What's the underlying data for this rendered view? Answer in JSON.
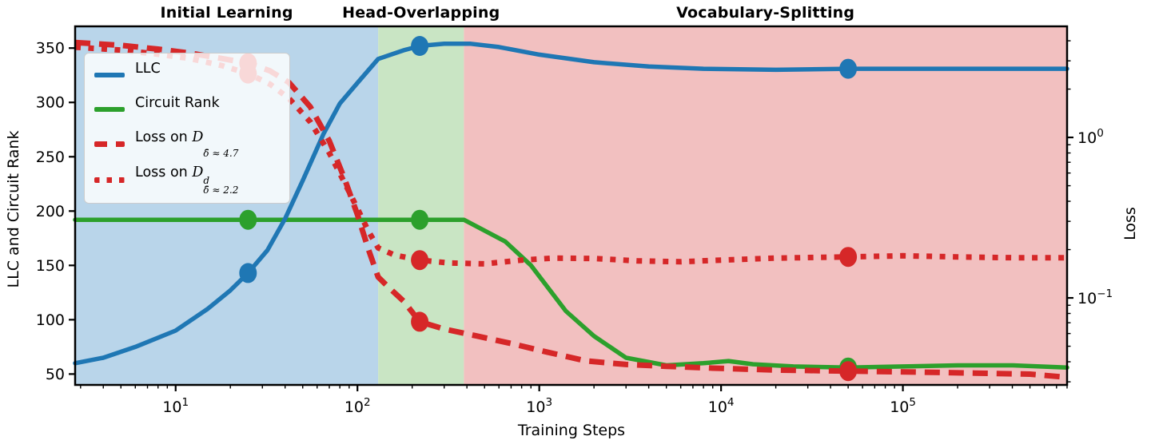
{
  "chart_data": {
    "type": "line",
    "x_axis": {
      "label": "Training Steps",
      "scale": "log",
      "min": 2.8,
      "max": 800000,
      "major_tick_exponents": [
        1,
        2,
        3,
        4,
        5
      ],
      "major_tick_labels": [
        "10¹",
        "10²",
        "10³",
        "10⁴",
        "10⁵"
      ]
    },
    "y_left_axis": {
      "label": "LLC and Circuit Rank",
      "scale": "linear",
      "min": 40,
      "max": 370,
      "ticks": [
        50,
        100,
        150,
        200,
        250,
        300,
        350
      ]
    },
    "y_right_axis": {
      "label": "Loss",
      "scale": "log",
      "min": 0.0287,
      "max": 4.92,
      "major_tick_exponents": [
        0,
        -1
      ],
      "major_tick_labels": [
        "10⁰",
        "10⁻¹"
      ]
    },
    "regions": [
      {
        "label": "Initial Learning",
        "color": "#b9d5ea",
        "from": 2.8,
        "to": 130
      },
      {
        "label": "Head-Overlapping",
        "color": "#c9e5c4",
        "from": 130,
        "to": 385
      },
      {
        "label": "Vocabulary-Splitting",
        "color": "#f2c0c0",
        "from": 385,
        "to": 800000
      }
    ],
    "checkpoint_steps": [
      25,
      220,
      50000
    ],
    "series": [
      {
        "name": "Circuit Rank",
        "color": "#2ca02c",
        "axis": "left",
        "style": "solid",
        "points": [
          [
            2.8,
            192
          ],
          [
            25,
            192
          ],
          [
            130,
            192
          ],
          [
            220,
            192
          ],
          [
            385,
            192
          ],
          [
            650,
            172
          ],
          [
            900,
            150
          ],
          [
            1400,
            108
          ],
          [
            2000,
            85
          ],
          [
            3000,
            65
          ],
          [
            5000,
            58
          ],
          [
            8000,
            60
          ],
          [
            11000,
            62
          ],
          [
            15000,
            59
          ],
          [
            25000,
            57
          ],
          [
            50000,
            56
          ],
          [
            100000,
            57
          ],
          [
            200000,
            58
          ],
          [
            400000,
            58
          ],
          [
            800000,
            56
          ]
        ],
        "markers": [
          [
            25,
            192
          ],
          [
            220,
            192
          ],
          [
            50000,
            56
          ]
        ]
      },
      {
        "name": "LLC",
        "color": "#1f77b4",
        "axis": "left",
        "style": "solid",
        "points": [
          [
            2.8,
            60
          ],
          [
            4,
            65
          ],
          [
            6,
            75
          ],
          [
            10,
            90
          ],
          [
            15,
            110
          ],
          [
            20,
            127
          ],
          [
            25,
            143
          ],
          [
            32,
            164
          ],
          [
            40,
            193
          ],
          [
            50,
            228
          ],
          [
            65,
            271
          ],
          [
            80,
            299
          ],
          [
            100,
            318
          ],
          [
            130,
            340
          ],
          [
            180,
            348
          ],
          [
            220,
            352
          ],
          [
            300,
            354
          ],
          [
            420,
            354
          ],
          [
            600,
            351
          ],
          [
            1000,
            344
          ],
          [
            2000,
            337
          ],
          [
            4000,
            333
          ],
          [
            8000,
            331
          ],
          [
            20000,
            330
          ],
          [
            50000,
            331
          ],
          [
            100000,
            331
          ],
          [
            300000,
            331
          ],
          [
            800000,
            331
          ]
        ],
        "markers": [
          [
            25,
            143
          ],
          [
            220,
            352
          ],
          [
            50000,
            331
          ]
        ]
      },
      {
        "name": "Loss on D (δ̄ ≈ 4.7)",
        "color": "#d62728",
        "axis": "right",
        "style": "dashed",
        "points": [
          [
            2.8,
            3.9
          ],
          [
            5,
            3.75
          ],
          [
            8,
            3.55
          ],
          [
            12,
            3.35
          ],
          [
            18,
            3.1
          ],
          [
            25,
            2.9
          ],
          [
            33,
            2.6
          ],
          [
            42,
            2.2
          ],
          [
            55,
            1.55
          ],
          [
            70,
            0.95
          ],
          [
            85,
            0.55
          ],
          [
            100,
            0.33
          ],
          [
            115,
            0.2
          ],
          [
            130,
            0.135
          ],
          [
            150,
            0.115
          ],
          [
            180,
            0.095
          ],
          [
            220,
            0.071
          ],
          [
            300,
            0.064
          ],
          [
            450,
            0.058
          ],
          [
            700,
            0.052
          ],
          [
            1100,
            0.046
          ],
          [
            1800,
            0.0405
          ],
          [
            3000,
            0.0385
          ],
          [
            5000,
            0.0375
          ],
          [
            9000,
            0.0365
          ],
          [
            20000,
            0.0355
          ],
          [
            50000,
            0.035
          ],
          [
            120000,
            0.0345
          ],
          [
            250000,
            0.034
          ],
          [
            500000,
            0.0335
          ],
          [
            800000,
            0.032
          ]
        ],
        "markers": [
          [
            25,
            2.9
          ],
          [
            220,
            0.071
          ],
          [
            50000,
            0.035
          ]
        ]
      },
      {
        "name": "Loss on D^d (δ̄ ≈ 2.2)",
        "color": "#d62728",
        "axis": "right",
        "style": "dotted",
        "points": [
          [
            2.8,
            3.65
          ],
          [
            5,
            3.5
          ],
          [
            8,
            3.3
          ],
          [
            12,
            3.1
          ],
          [
            18,
            2.8
          ],
          [
            25,
            2.5
          ],
          [
            33,
            2.15
          ],
          [
            42,
            1.75
          ],
          [
            55,
            1.25
          ],
          [
            70,
            0.8
          ],
          [
            85,
            0.52
          ],
          [
            100,
            0.36
          ],
          [
            115,
            0.26
          ],
          [
            130,
            0.205
          ],
          [
            160,
            0.185
          ],
          [
            220,
            0.172
          ],
          [
            320,
            0.165
          ],
          [
            500,
            0.163
          ],
          [
            800,
            0.172
          ],
          [
            1200,
            0.177
          ],
          [
            2000,
            0.176
          ],
          [
            3500,
            0.17
          ],
          [
            6000,
            0.168
          ],
          [
            10000,
            0.172
          ],
          [
            20000,
            0.177
          ],
          [
            50000,
            0.18
          ],
          [
            100000,
            0.183
          ],
          [
            200000,
            0.18
          ],
          [
            400000,
            0.178
          ],
          [
            800000,
            0.178
          ]
        ],
        "markers": [
          [
            25,
            2.5
          ],
          [
            220,
            0.172
          ],
          [
            50000,
            0.18
          ]
        ]
      }
    ]
  },
  "legend": {
    "items": [
      {
        "prefix": "LLC",
        "symbol": "",
        "sup": "",
        "sub": "",
        "color": "#1f77b4",
        "pattern": "solid"
      },
      {
        "prefix": "Circuit Rank",
        "symbol": "",
        "sup": "",
        "sub": "",
        "color": "#2ca02c",
        "pattern": "solid"
      },
      {
        "prefix": "Loss on ",
        "symbol": "D",
        "sup": "",
        "sub": "δ̄ ≈ 4.7",
        "color": "#d62728",
        "pattern": "dashed"
      },
      {
        "prefix": "Loss on ",
        "symbol": "D",
        "sup": "d",
        "sub": "δ̄ ≈ 2.2",
        "color": "#d62728",
        "pattern": "dotted"
      }
    ]
  },
  "labels": {
    "x_axis": "Training Steps",
    "y_left": "LLC and Circuit Rank",
    "y_right": "Loss"
  }
}
